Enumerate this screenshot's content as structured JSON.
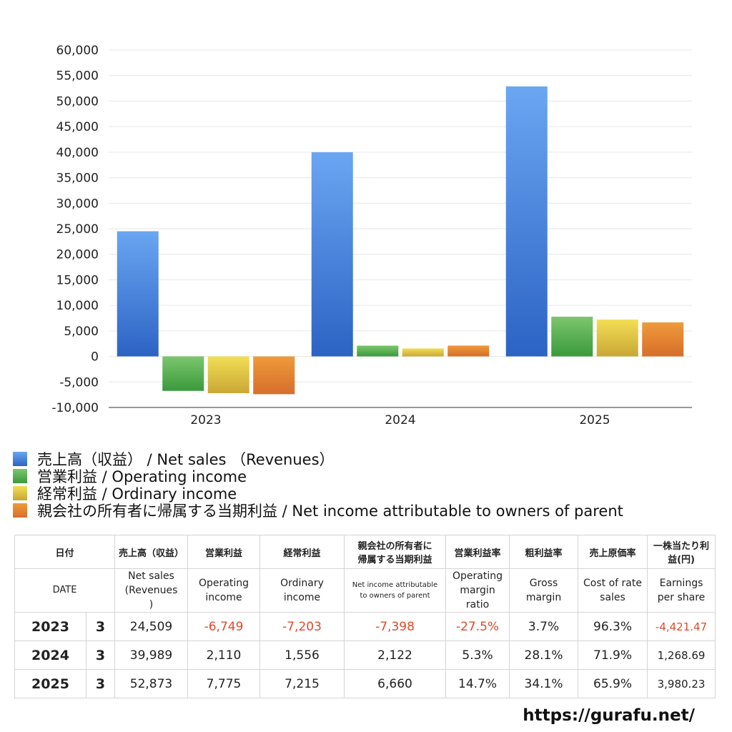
{
  "chart_data": {
    "type": "bar",
    "categories": [
      "2023",
      "2024",
      "2025"
    ],
    "series": [
      {
        "name": "売上高（収益） / Net sales （Revenues）",
        "values": [
          24509,
          39989,
          52873
        ]
      },
      {
        "name": "営業利益 / Operating income",
        "values": [
          -6749,
          2110,
          7775
        ]
      },
      {
        "name": "経常利益 / Ordinary income",
        "values": [
          -7203,
          1556,
          7215
        ]
      },
      {
        "name": "親会社の所有者に帰属する当期利益 / Net income attributable to owners of parent",
        "values": [
          -7398,
          2122,
          6660
        ]
      }
    ],
    "ylim": [
      -10000,
      60000
    ],
    "yticks": [
      60000,
      55000,
      50000,
      45000,
      40000,
      35000,
      30000,
      25000,
      20000,
      15000,
      10000,
      5000,
      0,
      -5000,
      -10000
    ],
    "ytick_labels": [
      "60,000",
      "55,000",
      "50,000",
      "45,000",
      "40,000",
      "35,000",
      "30,000",
      "25,000",
      "20,000",
      "15,000",
      "10,000",
      "5,000",
      "0",
      "-5,000",
      "-10,000"
    ],
    "title": "",
    "xlabel": "",
    "ylabel": "",
    "grid": true,
    "legend_position": "bottom"
  },
  "colors": {
    "series": [
      {
        "top": "#6aa6f2",
        "bottom": "#2c63c4"
      },
      {
        "top": "#7cc66c",
        "bottom": "#3a9a3c"
      },
      {
        "top": "#f2de55",
        "bottom": "#c9a735"
      },
      {
        "top": "#ef9a3c",
        "bottom": "#d66e2a"
      }
    ],
    "negative_text": "#e04a2a"
  },
  "legend": {
    "items": [
      {
        "label": "売上高（収益） / Net sales （Revenues）"
      },
      {
        "label": "営業利益 / Operating income"
      },
      {
        "label": "経常利益 / Ordinary income"
      },
      {
        "label": "親会社の所有者に帰属する当期利益 / Net income attributable to owners of parent"
      }
    ]
  },
  "table": {
    "header_jp": {
      "date": "日付",
      "net_sales": "売上高（収益）",
      "operating_income": "営業利益",
      "ordinary_income": "経常利益",
      "net_income_l1": "親会社の所有者に",
      "net_income_l2": "帰属する当期利益",
      "operating_margin": "営業利益率",
      "gross_margin": "粗利益率",
      "cost_rate": "売上原価率",
      "eps_l1": "一株当たり利",
      "eps_l2": "益(円)"
    },
    "header_en": {
      "date": "DATE",
      "net_sales_l1": "Net sales",
      "net_sales_l2": "(Revenues",
      "net_sales_l3": ")",
      "operating_income_l1": "Operating",
      "operating_income_l2": "income",
      "ordinary_income_l1": "Ordinary",
      "ordinary_income_l2": "income",
      "net_income_l1": "Net income attributable",
      "net_income_l2": "to owners of parent",
      "operating_margin_l1": "Operating",
      "operating_margin_l2": "margin",
      "operating_margin_l3": "ratio",
      "gross_margin_l1": "Gross",
      "gross_margin_l2": "margin",
      "cost_rate_l1": "Cost of rate",
      "cost_rate_l2": "sales",
      "eps_l1": "Earnings",
      "eps_l2": "per share"
    },
    "rows": [
      {
        "year": "2023",
        "month": "3",
        "net_sales": "24,509",
        "operating_income": "-6,749",
        "ordinary_income": "-7,203",
        "net_income": "-7,398",
        "operating_margin": "-27.5%",
        "gross_margin": "3.7%",
        "cost_rate": "96.3%",
        "eps": "-4,421.47"
      },
      {
        "year": "2024",
        "month": "3",
        "net_sales": "39,989",
        "operating_income": "2,110",
        "ordinary_income": "1,556",
        "net_income": "2,122",
        "operating_margin": "5.3%",
        "gross_margin": "28.1%",
        "cost_rate": "71.9%",
        "eps": "1,268.69"
      },
      {
        "year": "2025",
        "month": "3",
        "net_sales": "52,873",
        "operating_income": "7,775",
        "ordinary_income": "7,215",
        "net_income": "6,660",
        "operating_margin": "14.7%",
        "gross_margin": "34.1%",
        "cost_rate": "65.9%",
        "eps": "3,980.23"
      }
    ]
  },
  "footer": {
    "url": "https://gurafu.net/"
  }
}
